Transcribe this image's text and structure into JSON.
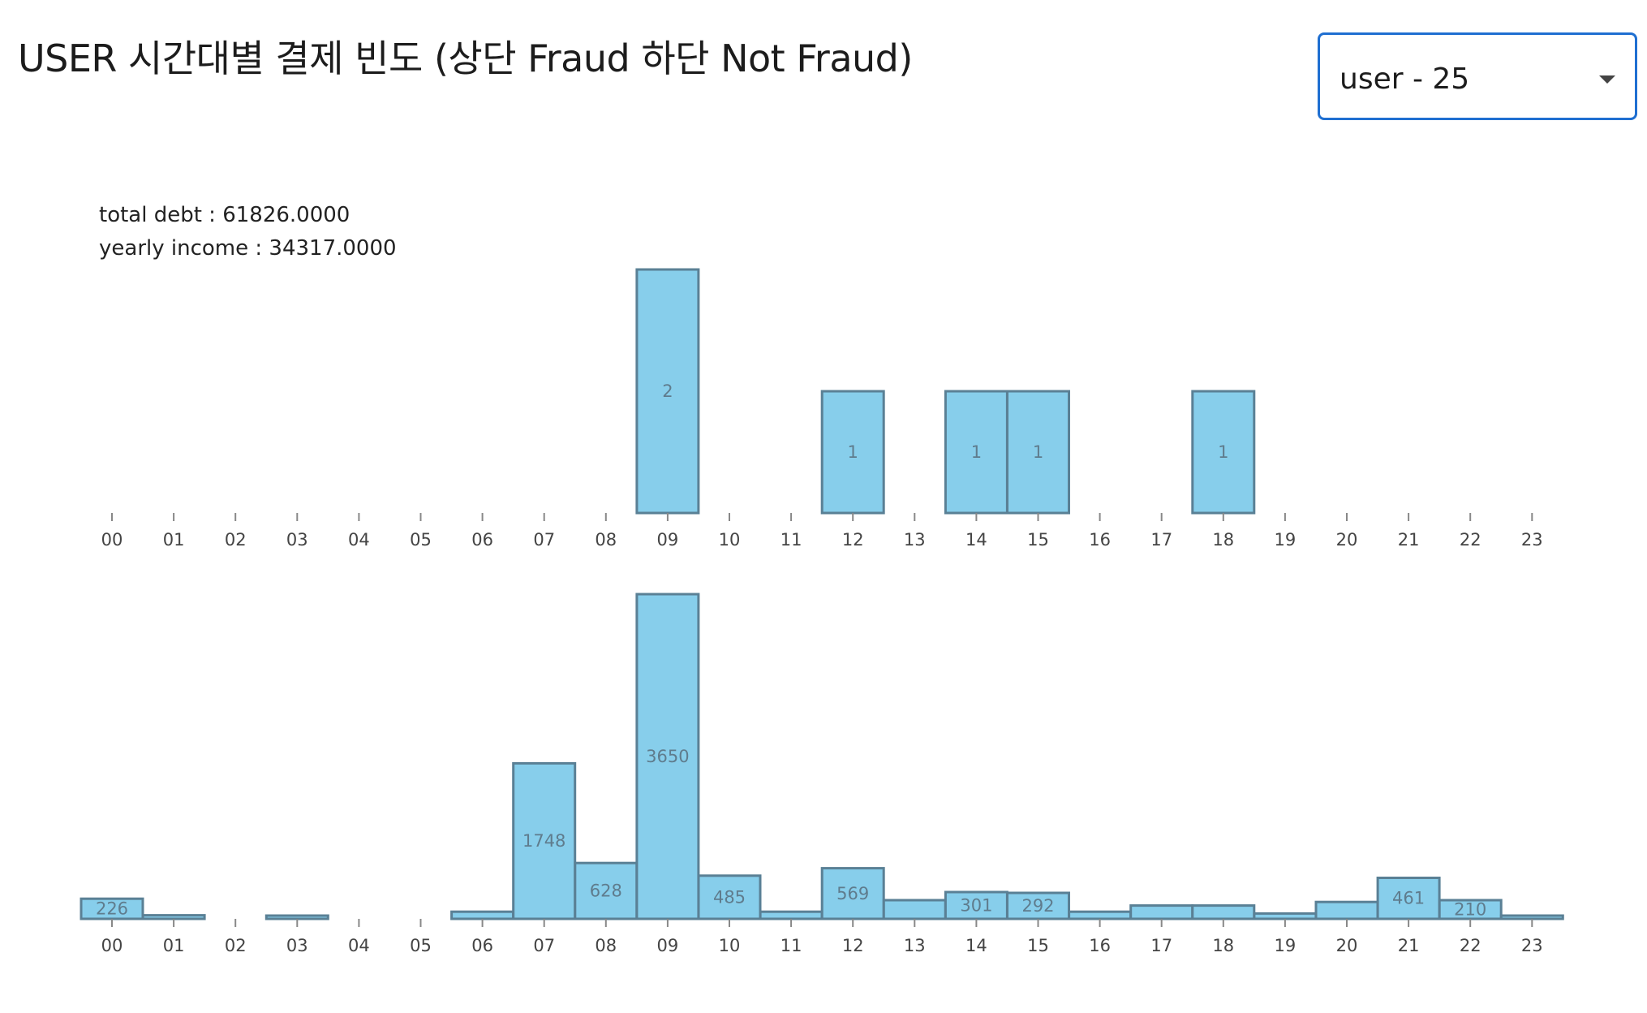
{
  "title": "USER 시간대별 결제 빈도 (상단 Fraud 하단 Not Fraud)",
  "user_select": {
    "value": "user - 25",
    "icon": "caret-down-icon"
  },
  "info": {
    "total_debt": "total debt : 61826.0000",
    "yearly_income": "yearly income : 34317.0000"
  },
  "colors": {
    "bar_fill": "#87ceeb",
    "bar_stroke": "#5a8095",
    "select_border": "#1f6fd1"
  },
  "chart_data": [
    {
      "type": "bar",
      "name": "fraud",
      "categories": [
        "00",
        "01",
        "02",
        "03",
        "04",
        "05",
        "06",
        "07",
        "08",
        "09",
        "10",
        "11",
        "12",
        "13",
        "14",
        "15",
        "16",
        "17",
        "18",
        "19",
        "20",
        "21",
        "22",
        "23"
      ],
      "values": [
        0,
        0,
        0,
        0,
        0,
        0,
        0,
        0,
        0,
        2,
        0,
        0,
        1,
        0,
        1,
        1,
        0,
        0,
        1,
        0,
        0,
        0,
        0,
        0
      ],
      "labels": [
        "",
        "",
        "",
        "",
        "",
        "",
        "",
        "",
        "",
        "2",
        "",
        "",
        "1",
        "",
        "1",
        "1",
        "",
        "",
        "1",
        "",
        "",
        "",
        "",
        ""
      ],
      "ylim": [
        0,
        2
      ]
    },
    {
      "type": "bar",
      "name": "not_fraud",
      "categories": [
        "00",
        "01",
        "02",
        "03",
        "04",
        "05",
        "06",
        "07",
        "08",
        "09",
        "10",
        "11",
        "12",
        "13",
        "14",
        "15",
        "16",
        "17",
        "18",
        "19",
        "20",
        "21",
        "22",
        "23"
      ],
      "values": [
        226,
        40,
        0,
        20,
        0,
        0,
        80,
        1748,
        628,
        3650,
        485,
        80,
        569,
        210,
        301,
        292,
        80,
        150,
        150,
        60,
        190,
        461,
        210,
        25
      ],
      "labels": [
        "226",
        "",
        "",
        "",
        "",
        "",
        "",
        "1748",
        "628",
        "3650",
        "485",
        "",
        "569",
        "",
        "301",
        "292",
        "",
        "",
        "",
        "",
        "",
        "461",
        "210",
        ""
      ],
      "ylim": [
        0,
        3650
      ]
    }
  ]
}
